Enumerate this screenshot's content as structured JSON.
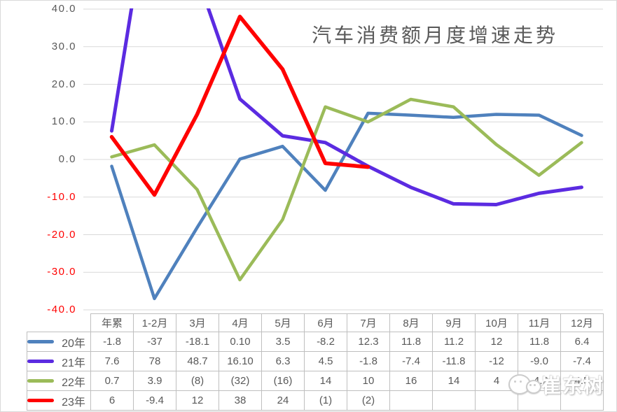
{
  "title": "汽车消费额月度增速走势",
  "watermark": {
    "text": "崔东树",
    "icon": "wechat-bubbles-icon"
  },
  "colors": {
    "series_20": "#4F81BD",
    "series_21": "#5B2BE1",
    "series_22": "#9BBB59",
    "series_23": "#FF0000",
    "gridline": "#D9D9D9",
    "axis_text": "#595959",
    "axis_text_negative": "#FF0000",
    "table_border": "#BFBFBF",
    "table_text": "#595959"
  },
  "chart_data": {
    "type": "line",
    "title": "汽车消费额月度增速走势",
    "categories": [
      "年累",
      "1-2月",
      "3月",
      "4月",
      "5月",
      "6月",
      "7月",
      "8月",
      "9月",
      "10月",
      "11月",
      "12月"
    ],
    "series": [
      {
        "name": "20年",
        "color": "#4F81BD",
        "values": [
          -1.8,
          -37,
          -18.1,
          0.1,
          3.5,
          -8.2,
          12.3,
          11.8,
          11.2,
          12,
          11.8,
          6.4
        ]
      },
      {
        "name": "21年",
        "color": "#5B2BE1",
        "values": [
          7.6,
          78,
          48.7,
          16.1,
          6.3,
          4.5,
          -1.8,
          -7.4,
          -11.8,
          -12,
          -9.0,
          -7.4
        ]
      },
      {
        "name": "22年",
        "color": "#9BBB59",
        "values": [
          0.7,
          3.9,
          -8,
          -32,
          -16,
          14,
          10,
          16,
          14,
          4,
          -4.2,
          4.5
        ]
      },
      {
        "name": "23年",
        "color": "#FF0000",
        "values": [
          6,
          -9.4,
          12,
          38,
          24,
          -1,
          -2,
          null,
          null,
          null,
          null,
          null
        ]
      }
    ],
    "ylim": [
      -40,
      40
    ],
    "ytick_values": [
      40,
      30,
      20,
      10,
      0,
      -10,
      -20,
      -30,
      -40
    ],
    "ytick_labels": [
      "40.0",
      "30.0",
      "20.0",
      "10.0",
      "0.0",
      "-10.0",
      "-20.0",
      "-30.0",
      "-40.0"
    ],
    "grid": true,
    "legend_position": "table-rows-left",
    "clip_above": 40
  },
  "table": {
    "columns": [
      "年累",
      "1-2月",
      "3月",
      "4月",
      "5月",
      "6月",
      "7月",
      "8月",
      "9月",
      "10月",
      "11月",
      "12月"
    ],
    "rows": [
      {
        "label": "20年",
        "cells": [
          "-1.8",
          "-37",
          "-18.1",
          "0.10",
          "3.5",
          "-8.2",
          "12.3",
          "11.8",
          "11.2",
          "12",
          "11.8",
          "6.4"
        ]
      },
      {
        "label": "21年",
        "cells": [
          "7.6",
          "78",
          "48.7",
          "16.10",
          "6.3",
          "4.5",
          "-1.8",
          "-7.4",
          "-11.8",
          "-12",
          "-9.0",
          "-7.4"
        ]
      },
      {
        "label": "22年",
        "cells": [
          "0.7",
          "3.9",
          "(8)",
          "(32)",
          "(16)",
          "14",
          "10",
          "16",
          "14",
          "4",
          "-4.2",
          "4.5"
        ]
      },
      {
        "label": "23年",
        "cells": [
          "6",
          "-9.4",
          "12",
          "38",
          "24",
          "(1)",
          "(2)",
          "",
          "",
          "",
          "",
          ""
        ]
      }
    ]
  }
}
